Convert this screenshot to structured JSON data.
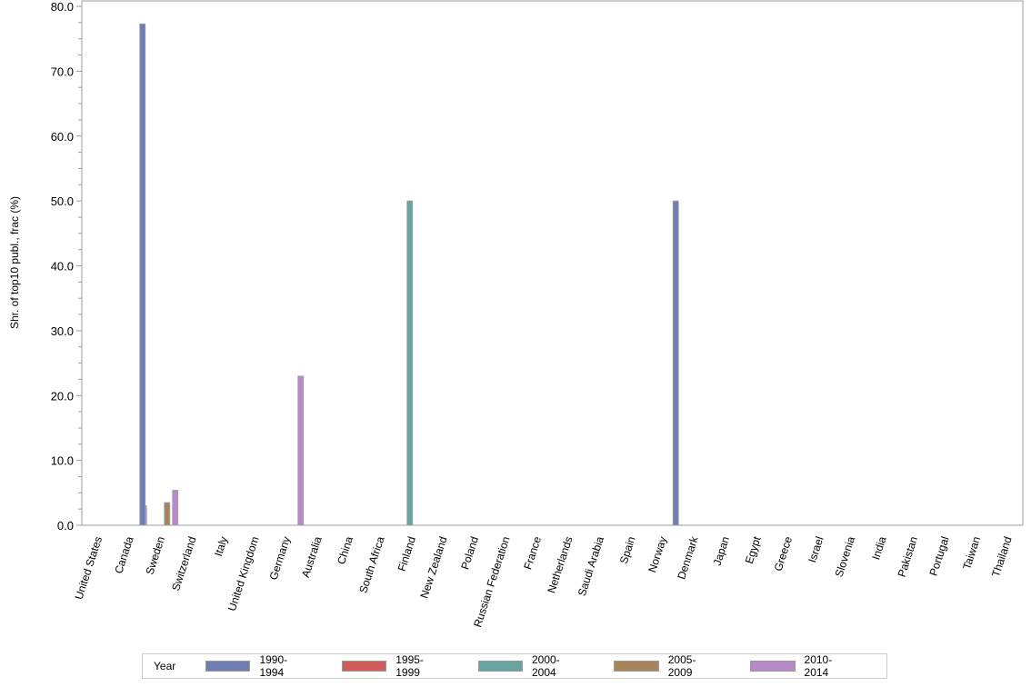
{
  "chart_data": {
    "type": "bar",
    "title": "",
    "xlabel": "",
    "ylabel": "Shr. of top10 publ., frac (%)",
    "ylim": [
      0,
      80
    ],
    "yticks": [
      "0.0",
      "10.0",
      "20.0",
      "30.0",
      "40.0",
      "50.0",
      "60.0",
      "70.0",
      "80.0"
    ],
    "grid": false,
    "legend_position": "bottom",
    "legend_title": "Year",
    "categories": [
      "United States",
      "Canada",
      "Sweden",
      "Switzerland",
      "Italy",
      "United Kingdom",
      "Germany",
      "Australia",
      "China",
      "South Africa",
      "Finland",
      "New Zealand",
      "Poland",
      "Russian Federation",
      "France",
      "Netherlands",
      "Saudi Arabia",
      "Spain",
      "Norway",
      "Denmark",
      "Japan",
      "Egypt",
      "Greece",
      "Israel",
      "Slovenia",
      "India",
      "Pakistan",
      "Portugal",
      "Taiwan",
      "Thailand"
    ],
    "series": [
      {
        "name": "1990-1994",
        "color": "#6f7fb3",
        "values": [
          0,
          0,
          77.3,
          0,
          0,
          0,
          0,
          0,
          0,
          0,
          0,
          0,
          0,
          0,
          0,
          0,
          0,
          0,
          0,
          50.0,
          0,
          0,
          0,
          0,
          0,
          0,
          0,
          0,
          0,
          0
        ]
      },
      {
        "name": "1995-1999",
        "color": "#d05b5b",
        "values": [
          0,
          0,
          0,
          0,
          0,
          0,
          0,
          0,
          0,
          0,
          0,
          0,
          0,
          0,
          0,
          0,
          0,
          0,
          0,
          0,
          0,
          0,
          0,
          0,
          0,
          0,
          0,
          0,
          0,
          0
        ]
      },
      {
        "name": "2000-2004",
        "color": "#66a5a0",
        "values": [
          0,
          0,
          0,
          0,
          0,
          0,
          0,
          0,
          0,
          0,
          50.0,
          0,
          0,
          0,
          0,
          0,
          0,
          0,
          0,
          0,
          0,
          0,
          0,
          0,
          0,
          0,
          0,
          0,
          0,
          0
        ]
      },
      {
        "name": "2005-2009",
        "color": "#a8845b",
        "values": [
          0,
          0,
          3.5,
          0,
          0,
          0,
          0,
          0,
          0,
          0,
          0,
          0,
          0,
          0,
          0,
          0,
          0,
          0,
          0,
          0,
          0,
          0,
          0,
          0,
          0,
          0,
          0,
          0,
          0,
          0
        ]
      },
      {
        "name": "2010-2014",
        "color": "#b689c9",
        "values": [
          0,
          3.0,
          5.4,
          0,
          0,
          0,
          23.0,
          0,
          0,
          0,
          0,
          0,
          0,
          0,
          0,
          0,
          0,
          0,
          0,
          0,
          0,
          0,
          0,
          0,
          0,
          0,
          0,
          0,
          0,
          0
        ]
      }
    ]
  },
  "legend": {
    "title": "Year",
    "items": [
      {
        "label": "1990-1994",
        "color": "#6f7fb3"
      },
      {
        "label": "1995-1999",
        "color": "#d05b5b"
      },
      {
        "label": "2000-2004",
        "color": "#66a5a0"
      },
      {
        "label": "2005-2009",
        "color": "#a8845b"
      },
      {
        "label": "2010-2014",
        "color": "#b689c9"
      }
    ]
  }
}
